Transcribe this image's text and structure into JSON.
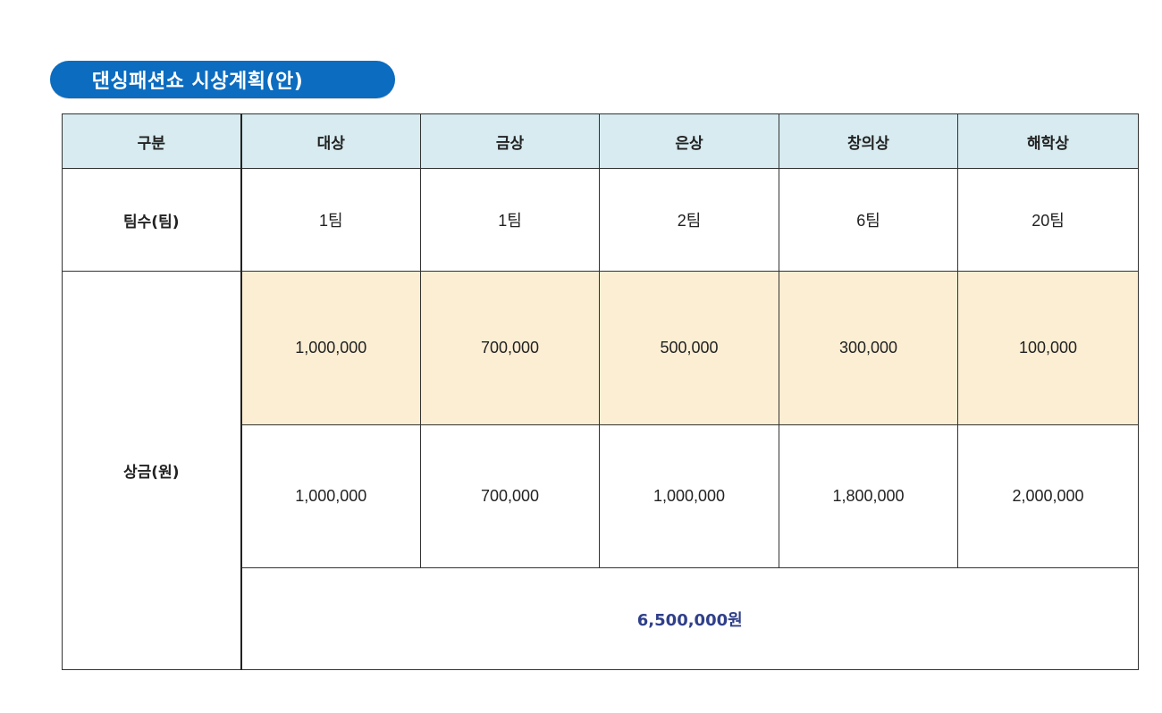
{
  "title": "댄싱패션쇼 시상계획(안)",
  "table": {
    "header": [
      "구분",
      "대상",
      "금상",
      "은상",
      "창의상",
      "해학상"
    ],
    "teams_row": {
      "label": "팀수(팀)",
      "values": [
        "1팀",
        "1팀",
        "2팀",
        "6팀",
        "20팀"
      ]
    },
    "prize_label": "상금(원)",
    "unit_prizes": [
      "1,000,000",
      "700,000",
      "500,000",
      "300,000",
      "100,000"
    ],
    "total_prizes": [
      "1,000,000",
      "700,000",
      "1,000,000",
      "1,800,000",
      "2,000,000"
    ],
    "grand_total": "6,500,000원"
  },
  "colors": {
    "title_bg": "#0b6cc0",
    "header_bg": "#d7ebf0",
    "highlight_bg": "#fbeed3",
    "total_text": "#2f3f8a"
  }
}
